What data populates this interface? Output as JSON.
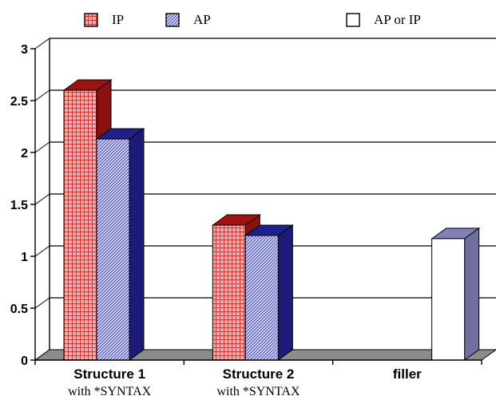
{
  "chart_data": {
    "type": "bar",
    "title": "",
    "xlabel": "",
    "ylabel": "",
    "ylim": [
      0,
      3
    ],
    "y_ticks": [
      "0",
      "0.5",
      "1",
      "1.5",
      "2",
      "2.5",
      "3"
    ],
    "grid": true,
    "three_d": true,
    "legend_position": "top",
    "categories": [
      {
        "label": "Structure 1",
        "sublabel": "with *SYNTAX"
      },
      {
        "label": "Structure 2",
        "sublabel": "with *SYNTAX"
      },
      {
        "label": "filler",
        "sublabel": ""
      }
    ],
    "series": [
      {
        "name": "IP",
        "values": [
          2.6,
          1.3,
          null
        ],
        "pattern": "checkered",
        "front_color": "#f08080",
        "side_color": "#8b1010"
      },
      {
        "name": "AP",
        "values": [
          2.13,
          1.2,
          null
        ],
        "pattern": "hatched",
        "front_color": "#a8a8f0",
        "side_color": "#1c1c78"
      },
      {
        "name": "AP or IP",
        "values": [
          null,
          null,
          1.17
        ],
        "pattern": "solid",
        "front_color": "#ffffff",
        "side_color": "#7070a0"
      }
    ]
  }
}
